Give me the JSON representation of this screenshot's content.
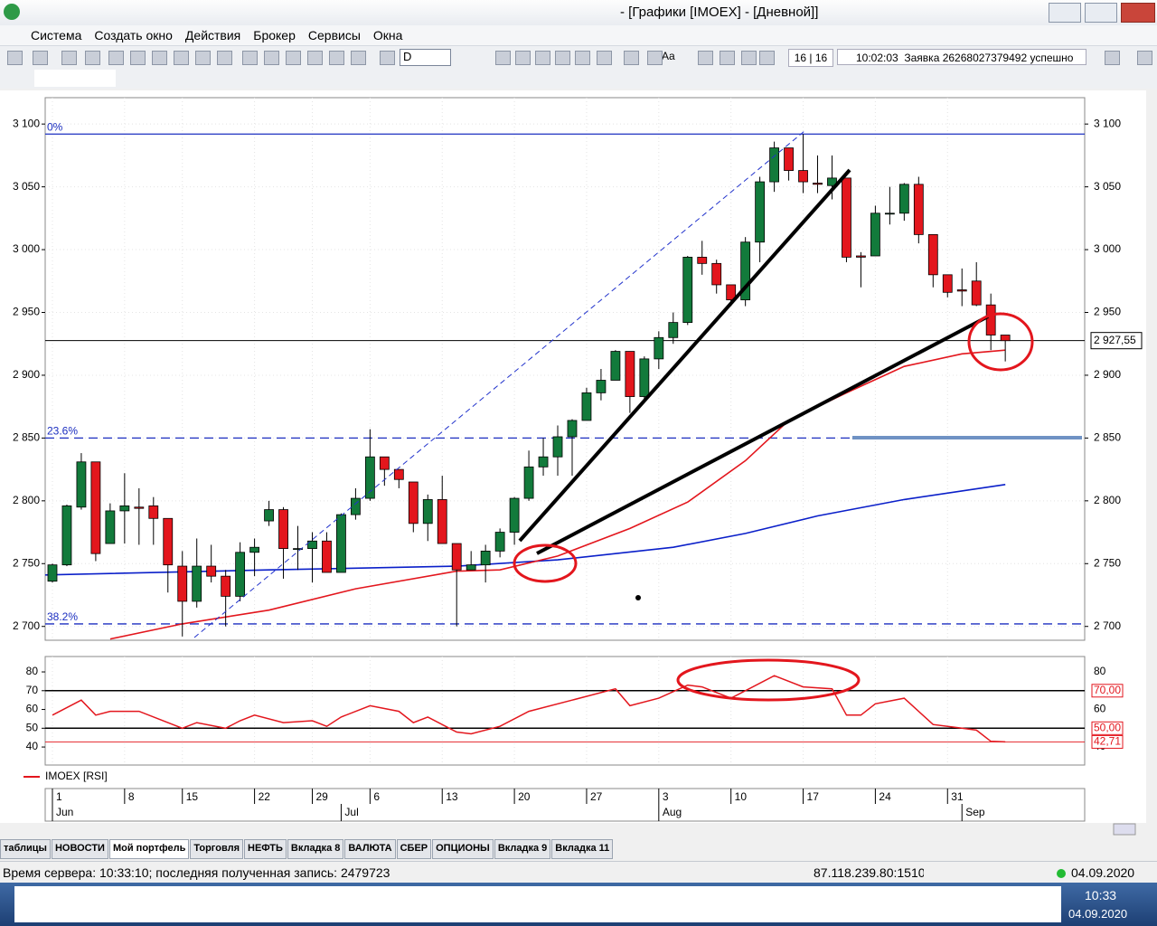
{
  "window": {
    "title": "- [Графики [IMOEX] - [Дневной]]"
  },
  "menu": [
    "Система",
    "Создать окно",
    "Действия",
    "Брокер",
    "Сервисы",
    "Окна"
  ],
  "toolbar": {
    "interval": "D",
    "font": "Aa",
    "counter": "16 | 16",
    "message": "10:02:03  Заявка 26268027379492 успешно"
  },
  "chart": {
    "type": "candlestick",
    "up_color": "#127a3b",
    "down_color": "#e3161d",
    "ylim": [
      2689,
      3121
    ],
    "xlim": [
      -0.5,
      71.5
    ],
    "yticks": [
      {
        "value": 2700,
        "label": "2 700"
      },
      {
        "value": 2750,
        "label": "2 750"
      },
      {
        "value": 2800,
        "label": "2 800"
      },
      {
        "value": 2850,
        "label": "2 850"
      },
      {
        "value": 2900,
        "label": "2 900"
      },
      {
        "value": 2950,
        "label": "2 950"
      },
      {
        "value": 3000,
        "label": "3 000"
      },
      {
        "value": 3050,
        "label": "3 050"
      },
      {
        "value": 3100,
        "label": "3 100"
      }
    ],
    "open": [
      2736,
      2749,
      2795,
      2831,
      2766,
      2792,
      2795,
      2796,
      2786,
      2748,
      2720,
      2748,
      2740,
      2724,
      2759,
      2784,
      2793,
      2762,
      2762,
      2768,
      2743,
      2789,
      2802,
      2835,
      2825,
      2815,
      2782,
      2801,
      2766,
      2745,
      2749,
      2760,
      2775,
      2802,
      2827,
      2835,
      2851,
      2864,
      2886,
      2896,
      2919,
      2883,
      2913,
      2930,
      2942,
      2994,
      2989,
      2972,
      2960,
      3006,
      3054,
      3081,
      3063,
      3053,
      3051,
      3057,
      2995,
      2995,
      3029,
      3029,
      3052,
      3012,
      2980,
      2968,
      2975,
      2956,
      2932
    ],
    "high": [
      2750,
      2797,
      2838,
      2831,
      2798,
      2822,
      2810,
      2803,
      2785,
      2760,
      2770,
      2765,
      2745,
      2767,
      2770,
      2800,
      2795,
      2780,
      2775,
      2775,
      2790,
      2810,
      2857,
      2835,
      2825,
      2815,
      2805,
      2820,
      2766,
      2760,
      2765,
      2778,
      2803,
      2840,
      2850,
      2860,
      2865,
      2890,
      2905,
      2920,
      2919,
      2915,
      2935,
      2950,
      2995,
      3007,
      2992,
      2972,
      3010,
      3058,
      3086,
      3081,
      3092,
      3075,
      3075,
      3057,
      2998,
      3035,
      3050,
      3053,
      3058,
      3012,
      2980,
      2985,
      2990,
      2965,
      2932
    ],
    "low": [
      2735,
      2748,
      2793,
      2752,
      2766,
      2766,
      2765,
      2765,
      2727,
      2692,
      2715,
      2735,
      2700,
      2720,
      2740,
      2780,
      2738,
      2745,
      2735,
      2743,
      2743,
      2785,
      2800,
      2812,
      2810,
      2775,
      2768,
      2766,
      2700,
      2745,
      2735,
      2755,
      2765,
      2800,
      2820,
      2820,
      2820,
      2864,
      2880,
      2896,
      2870,
      2880,
      2905,
      2925,
      2940,
      2980,
      2965,
      2955,
      2955,
      2990,
      3046,
      3055,
      3045,
      3045,
      3040,
      2990,
      2970,
      2995,
      3020,
      3023,
      3005,
      2970,
      2962,
      2955,
      2955,
      2920,
      2911
    ],
    "close": [
      2749,
      2796,
      2831,
      2758,
      2792,
      2796,
      2794,
      2786,
      2749,
      2720,
      2748,
      2740,
      2724,
      2759,
      2763,
      2793,
      2762,
      2762,
      2768,
      2743,
      2789,
      2802,
      2835,
      2825,
      2817,
      2782,
      2801,
      2766,
      2745,
      2749,
      2760,
      2775,
      2802,
      2827,
      2835,
      2851,
      2864,
      2886,
      2896,
      2919,
      2883,
      2913,
      2930,
      2942,
      2994,
      2989,
      2972,
      2960,
      3006,
      3054,
      3081,
      3063,
      3054,
      3052,
      3057,
      2994,
      2994,
      3029,
      3029,
      3052,
      3012,
      2980,
      2966,
      2967,
      2956,
      2932,
      2927.55
    ],
    "ma": [
      {
        "color": "#0a1fc9",
        "x": [
          -0.5,
          15,
          28,
          35,
          43,
          48,
          53,
          59,
          66
        ],
        "values": [
          2741,
          2745,
          2748,
          2753,
          2763,
          2774,
          2788,
          2801,
          2813
        ]
      },
      {
        "color": "#e3161d",
        "x": [
          4,
          9,
          15,
          21,
          28,
          31,
          35,
          40,
          44,
          48,
          51,
          55,
          59,
          63,
          66
        ],
        "values": [
          2690,
          2702,
          2713,
          2730,
          2744,
          2745,
          2756,
          2778,
          2799,
          2832,
          2864,
          2886,
          2907,
          2917,
          2920
        ]
      }
    ],
    "levels": [
      {
        "label": "0%",
        "value": 3092,
        "style": "solid"
      },
      {
        "label": "23.6%",
        "value": 2850,
        "style": "dashed"
      },
      {
        "label": "38.2%",
        "value": 2702,
        "style": "dashed"
      }
    ],
    "price_line": {
      "value": 2927.55,
      "label": "2 927,55"
    }
  },
  "rsi": {
    "legend": "IMOEX [RSI]",
    "color": "#e3161d",
    "ylim": [
      30.4,
      88.2
    ],
    "yticks": [
      40,
      50,
      60,
      70,
      80
    ],
    "levels": [
      {
        "value": 70,
        "label": "70,00"
      },
      {
        "value": 50,
        "label": "50,00"
      }
    ],
    "x": [
      0,
      2,
      3,
      4,
      6,
      9,
      10,
      12,
      13,
      14,
      16,
      18,
      19,
      20,
      22,
      24,
      25,
      26,
      28,
      29,
      31,
      33,
      36,
      39,
      40,
      42,
      44,
      45,
      47,
      50,
      52,
      54,
      55,
      56,
      57,
      59,
      61,
      63,
      64,
      65,
      66
    ],
    "values": [
      57,
      65,
      57,
      59,
      59,
      50,
      53,
      50,
      54,
      57,
      53,
      54,
      51,
      56,
      62,
      59,
      53,
      56,
      48,
      47,
      51,
      59,
      65,
      71,
      62,
      66,
      73,
      72,
      66,
      78,
      72,
      71,
      57,
      57,
      63,
      66,
      52,
      50,
      49,
      43,
      42.71
    ],
    "last_label": "42,71"
  },
  "date_axis": {
    "days": [
      {
        "index": 0,
        "label": "1"
      },
      {
        "index": 5,
        "label": "8"
      },
      {
        "index": 9,
        "label": "15"
      },
      {
        "index": 14,
        "label": "22"
      },
      {
        "index": 18,
        "label": "29"
      },
      {
        "index": 22,
        "label": "6"
      },
      {
        "index": 27,
        "label": "13"
      },
      {
        "index": 32,
        "label": "20"
      },
      {
        "index": 37,
        "label": "27"
      },
      {
        "index": 42,
        "label": "3"
      },
      {
        "index": 47,
        "label": "10"
      },
      {
        "index": 52,
        "label": "17"
      },
      {
        "index": 57,
        "label": "24"
      },
      {
        "index": 62,
        "label": "31"
      }
    ],
    "months": [
      {
        "index": 0,
        "label": "Jun"
      },
      {
        "index": 20,
        "label": "Jul"
      },
      {
        "index": 42,
        "label": "Aug"
      },
      {
        "index": 63,
        "label": "Sep"
      }
    ]
  },
  "tabs": [
    "таблицы",
    "НОВОСТИ",
    "Мой портфель",
    "Торговля",
    "НЕФТЬ",
    "Вкладка 8",
    "ВАЛЮТА",
    "СБЕР",
    "ОПЦИОНЫ",
    "Вкладка 9",
    "Вкладка 11"
  ],
  "status": {
    "server": "Время сервера: 10:33:10; последняя полученная запись: 2479723",
    "address": "87.118.239.80:1510",
    "date": "04.09.2020"
  },
  "taskbar": {
    "time": "10:33",
    "date": "04.09.2020"
  }
}
